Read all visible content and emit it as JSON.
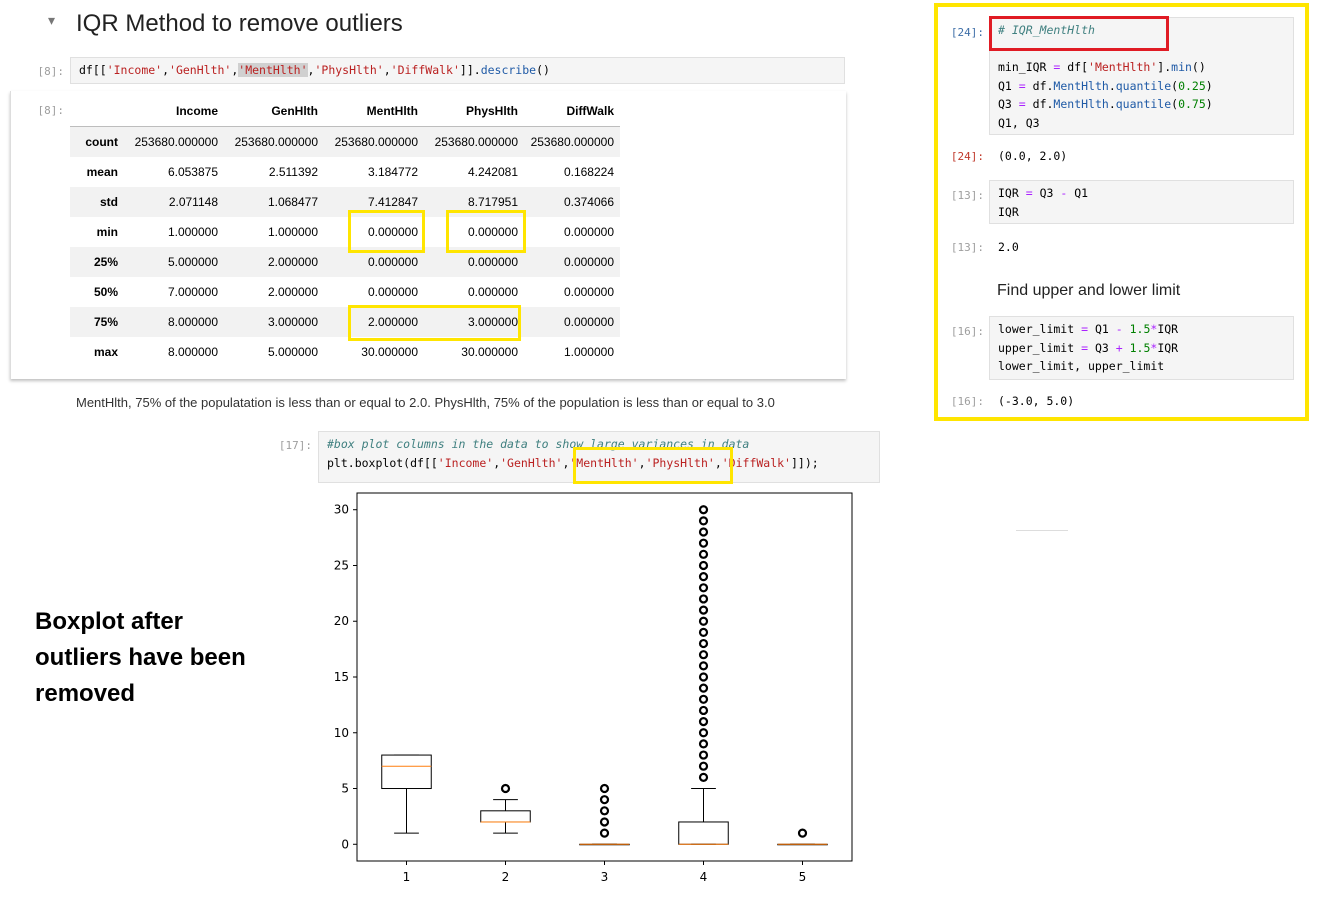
{
  "heading": {
    "caret": "▾",
    "title": "IQR Method to remove outliers"
  },
  "cell8": {
    "in_prompt": "[8]:",
    "out_prompt": "[8]:",
    "code": {
      "p1": "df[[",
      "s1": "'Income'",
      "c1": ",",
      "s2": "'GenHlth'",
      "c2": ",",
      "s3": "'MentHlth'",
      "c3": ",",
      "s4": "'PhysHlth'",
      "c4": ",",
      "s5": "'DiffWalk'",
      "p2": "]].",
      "fn": "describe",
      "p3": "()"
    }
  },
  "describe_table": {
    "columns": [
      "Income",
      "GenHlth",
      "MentHlth",
      "PhysHlth",
      "DiffWalk"
    ],
    "rows": [
      {
        "label": "count",
        "values": [
          "253680.000000",
          "253680.000000",
          "253680.000000",
          "253680.000000",
          "253680.000000"
        ]
      },
      {
        "label": "mean",
        "values": [
          "6.053875",
          "2.511392",
          "3.184772",
          "4.242081",
          "0.168224"
        ]
      },
      {
        "label": "std",
        "values": [
          "2.071148",
          "1.068477",
          "7.412847",
          "8.717951",
          "0.374066"
        ]
      },
      {
        "label": "min",
        "values": [
          "1.000000",
          "1.000000",
          "0.000000",
          "0.000000",
          "0.000000"
        ]
      },
      {
        "label": "25%",
        "values": [
          "5.000000",
          "2.000000",
          "0.000000",
          "0.000000",
          "0.000000"
        ]
      },
      {
        "label": "50%",
        "values": [
          "7.000000",
          "2.000000",
          "0.000000",
          "0.000000",
          "0.000000"
        ]
      },
      {
        "label": "75%",
        "values": [
          "8.000000",
          "3.000000",
          "2.000000",
          "3.000000",
          "0.000000"
        ]
      },
      {
        "label": "max",
        "values": [
          "8.000000",
          "5.000000",
          "30.000000",
          "30.000000",
          "1.000000"
        ]
      }
    ]
  },
  "note": "MentHlth, 75% of the populatation is less than or equal to 2.0. PhysHlth, 75% of the population is less than or equal to 3.0",
  "cell17": {
    "in_prompt": "[17]:",
    "comment": "#box plot columns in the data to show large variances in data",
    "code": {
      "p1": "plt.",
      "fn": "boxplot",
      "p2": "(df[[",
      "s1": "'Income'",
      "c1": ",",
      "s2": "'GenHlth'",
      "c2": ",",
      "s3": "'MentHlth'",
      "c3": ",",
      "s4": "'PhysHlth'",
      "c4": ",",
      "s5": "'DiffWalk'",
      "p3": "]]);"
    }
  },
  "side_caption": [
    "Boxplot after",
    "outliers have been",
    "removed"
  ],
  "right_panel": {
    "cell24": {
      "in_prompt": "[24]:",
      "comment": "# IQR_MentHlth",
      "l1": {
        "a": "min_IQR ",
        "eq": "=",
        "b": " df[",
        "s": "'MentHlth'",
        "c": "].",
        "fn": "min",
        "d": "()"
      },
      "l2": {
        "a": "Q1 ",
        "eq": "=",
        "b": " df.",
        "attr": "MentHlth",
        "dot": ".",
        "fn": "quantile",
        "o": "(",
        "n": "0.25",
        "cl": ")"
      },
      "l3": {
        "a": "Q3 ",
        "eq": "=",
        "b": " df.",
        "attr": "MentHlth",
        "dot": ".",
        "fn": "quantile",
        "o": "(",
        "n": "0.75",
        "cl": ")"
      },
      "l4": "Q1, Q3",
      "out_prompt": "[24]:",
      "output": "(0.0, 2.0)"
    },
    "cell13": {
      "in_prompt": "[13]:",
      "l1": {
        "a": "IQR ",
        "eq": "=",
        "b": " Q3 ",
        "op": "-",
        "c": " Q1"
      },
      "l2": "IQR",
      "out_prompt": "[13]:",
      "output": "2.0"
    },
    "markdown_heading": "Find upper and lower limit",
    "cell16": {
      "in_prompt": "[16]:",
      "l1": {
        "a": "lower_limit ",
        "eq": "=",
        "b": " Q1 ",
        "op": "-",
        "sp": " ",
        "n": "1.5",
        "m": "*",
        "c": "IQR"
      },
      "l2": {
        "a": "upper_limit ",
        "eq": "=",
        "b": " Q3 ",
        "op": "+",
        "sp": " ",
        "n": "1.5",
        "m": "*",
        "c": "IQR"
      },
      "l3": "lower_limit, upper_limit",
      "out_prompt": "[16]:",
      "output": "(-3.0, 5.0)"
    }
  },
  "colors": {
    "highlight_yellow": "#ffe500",
    "highlight_red": "#e01b24",
    "median_orange": "#ff7f0e",
    "prompt_gray": "#9e9e9e"
  },
  "chart_data": {
    "type": "boxplot",
    "title": "",
    "xlabel": "",
    "ylabel": "",
    "categories": [
      "1",
      "2",
      "3",
      "4",
      "5"
    ],
    "ylim": [
      -1.5,
      31.5
    ],
    "yticks": [
      0,
      5,
      10,
      15,
      20,
      25,
      30
    ],
    "boxes": [
      {
        "q1": 5,
        "median": 7,
        "q3": 8,
        "whisker_low": 1,
        "whisker_high": 8,
        "outliers": []
      },
      {
        "q1": 2,
        "median": 2,
        "q3": 3,
        "whisker_low": 1,
        "whisker_high": 4,
        "outliers": [
          5
        ]
      },
      {
        "q1": 0,
        "median": 0,
        "q3": 0,
        "whisker_low": 0,
        "whisker_high": 0,
        "outliers": [
          1,
          2,
          3,
          4,
          5
        ]
      },
      {
        "q1": 0,
        "median": 0,
        "q3": 2,
        "whisker_low": 0,
        "whisker_high": 5,
        "outliers": [
          6,
          7,
          8,
          9,
          10,
          11,
          12,
          13,
          14,
          15,
          16,
          17,
          18,
          19,
          20,
          21,
          22,
          23,
          24,
          25,
          26,
          27,
          28,
          29,
          30
        ]
      },
      {
        "q1": 0,
        "median": 0,
        "q3": 0,
        "whisker_low": 0,
        "whisker_high": 0,
        "outliers": [
          1
        ]
      }
    ],
    "grid": false,
    "legend": "none"
  }
}
